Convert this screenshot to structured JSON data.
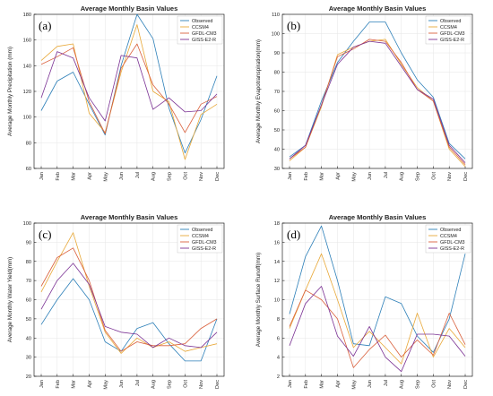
{
  "chart_data": [
    {
      "type": "line",
      "panel_label": "(a)",
      "title": "Average Monthly Basin Values",
      "ylabel": "Average Monthly Precipitation (mm)",
      "ylim": [
        60,
        180
      ],
      "yticks": [
        60,
        80,
        100,
        120,
        140,
        160,
        180
      ],
      "legend_position": "top-right",
      "categories": [
        "Jan",
        "Feb",
        "Mar",
        "Apr",
        "May",
        "Jun",
        "Jul",
        "Aug",
        "Sep",
        "Oct",
        "Nov",
        "Dec"
      ],
      "series": [
        {
          "name": "Observed",
          "color": "#2c7fb8",
          "values": [
            105,
            128,
            135,
            110,
            86,
            140,
            180,
            161,
            107,
            72,
            98,
            132
          ]
        },
        {
          "name": "CCSM4",
          "color": "#e8a838",
          "values": [
            144,
            155,
            157,
            103,
            88,
            135,
            172,
            120,
            112,
            67,
            102,
            110
          ]
        },
        {
          "name": "GFDL-CM3",
          "color": "#d95f3b",
          "values": [
            141,
            147,
            154,
            112,
            87,
            138,
            157,
            125,
            110,
            88,
            110,
            116
          ]
        },
        {
          "name": "GISS-E2-R",
          "color": "#7b3294",
          "values": [
            115,
            151,
            146,
            115,
            97,
            148,
            146,
            106,
            115,
            104,
            105,
            118
          ]
        }
      ]
    },
    {
      "type": "line",
      "panel_label": "(b)",
      "title": "Average Monthly Basin Values",
      "ylabel": "Average Monthly Evapotranspiration(mm)",
      "ylim": [
        30,
        110
      ],
      "yticks": [
        30,
        40,
        50,
        60,
        70,
        80,
        90,
        100,
        110
      ],
      "legend_position": "top-right",
      "categories": [
        "Jan",
        "Feb",
        "Mar",
        "Apr",
        "May",
        "Jun",
        "Jul",
        "Aug",
        "Sep",
        "Oct",
        "Nov",
        "Dec"
      ],
      "series": [
        {
          "name": "Observed",
          "color": "#2c7fb8",
          "values": [
            36,
            42,
            65,
            85,
            96,
            106,
            106,
            90,
            76,
            67,
            43,
            35
          ]
        },
        {
          "name": "CCSM4",
          "color": "#e8a838",
          "values": [
            34,
            41,
            62,
            89,
            93,
            96,
            97,
            84,
            72,
            65,
            40,
            31
          ]
        },
        {
          "name": "GFDL-CM3",
          "color": "#d95f3b",
          "values": [
            35,
            41,
            63,
            88,
            92,
            97,
            96,
            85,
            71,
            65,
            41,
            32
          ]
        },
        {
          "name": "GISS-E2-R",
          "color": "#7b3294",
          "values": [
            35,
            42,
            63,
            84,
            93,
            96,
            95,
            83,
            71,
            66,
            42,
            33
          ]
        }
      ]
    },
    {
      "type": "line",
      "panel_label": "(c)",
      "title": "Average Monthly Basin Values",
      "ylabel": "Average Monthly Water Yield(mm)",
      "ylim": [
        20,
        100
      ],
      "yticks": [
        20,
        30,
        40,
        50,
        60,
        70,
        80,
        90,
        100
      ],
      "legend_position": "top-right",
      "categories": [
        "Jan",
        "Feb",
        "Mar",
        "Apr",
        "May",
        "Jun",
        "Jul",
        "Aug",
        "Sep",
        "Oct",
        "Nov",
        "Dec"
      ],
      "series": [
        {
          "name": "Observed",
          "color": "#2c7fb8",
          "values": [
            47,
            60,
            71,
            60,
            38,
            33,
            45,
            48,
            37,
            28,
            28,
            50
          ]
        },
        {
          "name": "CCSM4",
          "color": "#e8a838",
          "values": [
            64,
            80,
            95,
            67,
            43,
            32,
            40,
            35,
            38,
            33,
            35,
            37
          ]
        },
        {
          "name": "GFDL-CM3",
          "color": "#d95f3b",
          "values": [
            67,
            82,
            87,
            70,
            44,
            33,
            38,
            36,
            36,
            37,
            45,
            50
          ]
        },
        {
          "name": "GISS-E2-R",
          "color": "#7b3294",
          "values": [
            55,
            70,
            79,
            68,
            46,
            43,
            42,
            35,
            40,
            36,
            35,
            43
          ]
        }
      ]
    },
    {
      "type": "line",
      "panel_label": "(d)",
      "title": "Average Monthly Basin Values",
      "ylabel": "Average Monthly Surface Runoff(mm)",
      "ylim": [
        2,
        18
      ],
      "yticks": [
        2,
        4,
        6,
        8,
        10,
        12,
        14,
        16,
        18
      ],
      "legend_position": "top-right",
      "categories": [
        "Jan",
        "Feb",
        "Mar",
        "Apr",
        "May",
        "Jun",
        "Jul",
        "Aug",
        "Sep",
        "Oct",
        "Nov",
        "Dec"
      ],
      "series": [
        {
          "name": "Observed",
          "color": "#2c7fb8",
          "values": [
            8.5,
            14.5,
            17.7,
            12.0,
            5.4,
            5.2,
            10.3,
            9.6,
            6.2,
            4.5,
            8.0,
            14.8
          ]
        },
        {
          "name": "CCSM4",
          "color": "#e8a838",
          "values": [
            7.0,
            11.0,
            14.8,
            10.0,
            5.0,
            6.7,
            5.0,
            3.3,
            8.6,
            4.0,
            7.0,
            5.0
          ]
        },
        {
          "name": "GFDL-CM3",
          "color": "#d95f3b",
          "values": [
            7.2,
            11.0,
            10.0,
            8.0,
            2.9,
            4.8,
            6.3,
            4.0,
            5.8,
            4.2,
            8.6,
            5.3
          ]
        },
        {
          "name": "GISS-E2-R",
          "color": "#7b3294",
          "values": [
            5.2,
            9.6,
            11.4,
            6.2,
            4.1,
            7.2,
            4.0,
            2.5,
            6.4,
            6.4,
            6.2,
            4.1
          ]
        }
      ]
    }
  ]
}
